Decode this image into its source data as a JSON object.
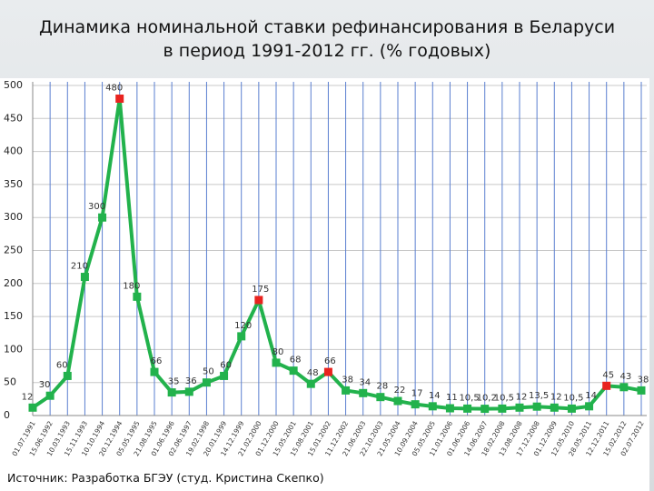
{
  "chart_data": {
    "type": "line",
    "title": [
      "Динамика номинальной ставки рефинансирования в Беларуси",
      "в период 1991-2012 гг. (% годовых)"
    ],
    "source": "Источник: Разработка БГЭУ (студ. Кристина Скепко)",
    "categories": [
      "01.07.1991",
      "15.06.1992",
      "10.03.1993",
      "15.11.1993",
      "10.10.1994",
      "20.12.1994",
      "05.05.1995",
      "21.08.1995",
      "01.06.1996",
      "02.06.1997",
      "19.02.1998",
      "20.01.1999",
      "14.12.1999",
      "21.02.2000",
      "01.12.2000",
      "15.05.2001",
      "15.08.2001",
      "15.01.2002",
      "11.12.2002",
      "21.06.2003",
      "22.10.2003",
      "21.05.2004",
      "10.09.2004",
      "05.05.2005",
      "11.01.2006",
      "01.06.2006",
      "14.06.2007",
      "18.02.2008",
      "13.08.2008",
      "17.12.2008",
      "01.12.2009",
      "12.05.2010",
      "28.05.2011",
      "12.12.2011",
      "15.02.2012",
      "02.07.2012"
    ],
    "series": [
      {
        "color": "#22b24c",
        "highlight_color": "#e8231f",
        "highlight_indices": [
          5,
          13,
          17,
          33
        ],
        "values": [
          12,
          30,
          60,
          210,
          300,
          480,
          180,
          66,
          35,
          36,
          50,
          60,
          120,
          175,
          80,
          68,
          48,
          66,
          38,
          34,
          28,
          22,
          17,
          14,
          11,
          10.5,
          10.2,
          10.5,
          12,
          13.5,
          12,
          10.5,
          14,
          45,
          43,
          38
        ],
        "value_labels": [
          "12",
          "30",
          "60",
          "210",
          "300",
          "480",
          "180",
          "66",
          "35",
          "36",
          "50",
          "60",
          "120",
          "175",
          "80",
          "68",
          "48",
          "66",
          "38",
          "34",
          "28",
          "22",
          "17",
          "14",
          "11",
          "10,5",
          "10,2",
          "10,5",
          "12",
          "13,5",
          "12",
          "10,5",
          "14",
          "45",
          "43",
          "38"
        ]
      }
    ],
    "ylim": [
      0,
      500
    ],
    "yticks": [
      0,
      50,
      100,
      150,
      200,
      250,
      300,
      350,
      400,
      450,
      500
    ],
    "grid": true
  }
}
